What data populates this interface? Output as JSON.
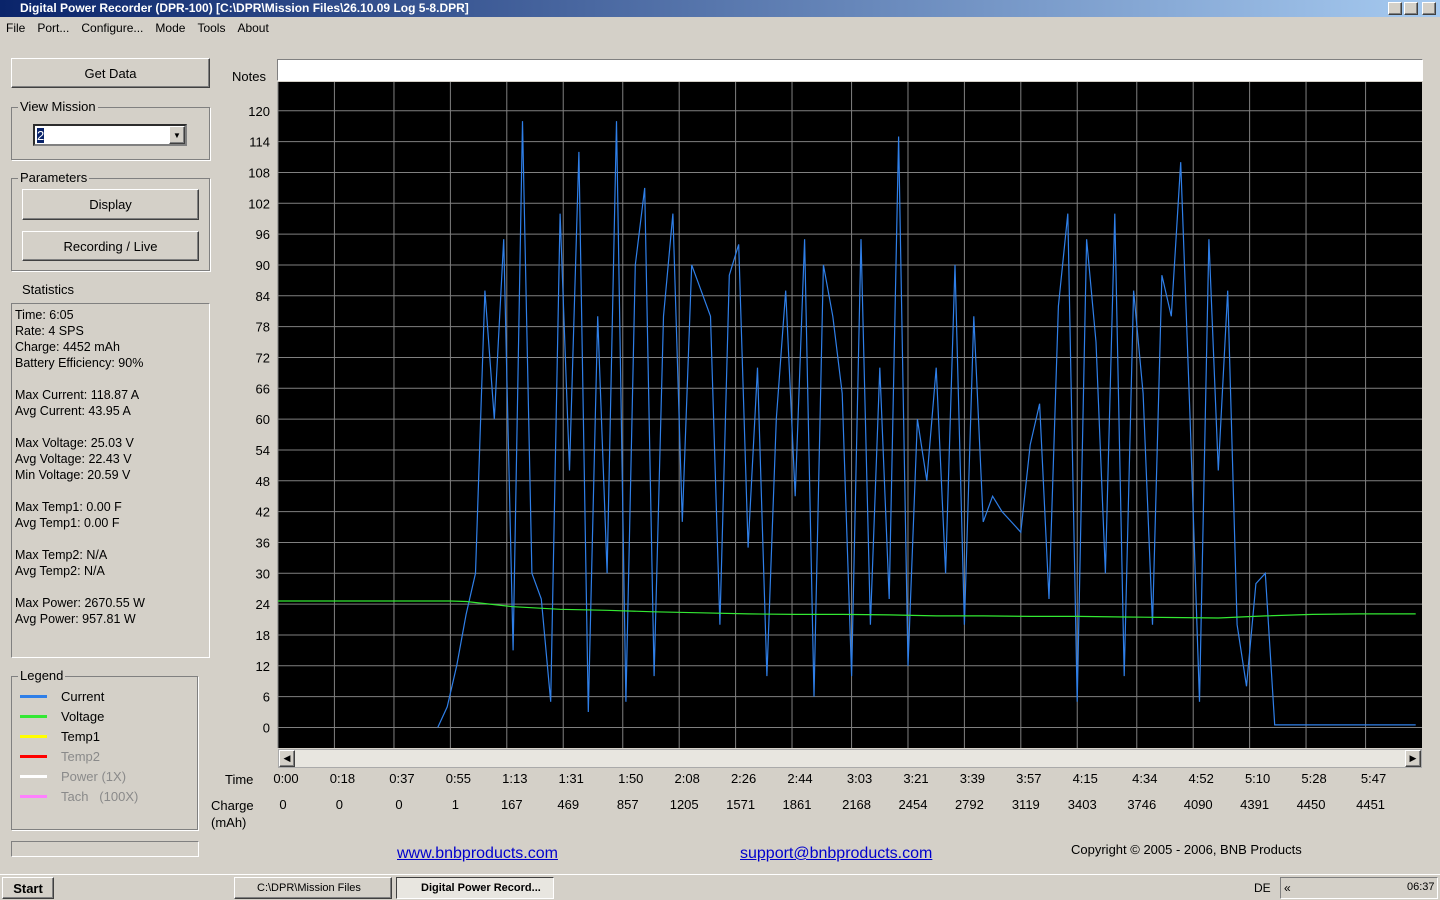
{
  "window": {
    "title": "Digital Power Recorder (DPR-100) [C:\\DPR\\Mission Files\\26.10.09 Log 5-8.DPR]"
  },
  "menu": [
    "File",
    "Port...",
    "Configure...",
    "Mode",
    "Tools",
    "About"
  ],
  "sidebar": {
    "get_data": "Get Data",
    "view_mission": {
      "label": "View Mission",
      "value": "2"
    },
    "parameters": {
      "label": "Parameters",
      "buttons": [
        "Display",
        "Recording / Live"
      ]
    },
    "statistics": {
      "label": "Statistics",
      "groups": [
        [
          "Time: 6:05",
          "Rate: 4 SPS",
          "Charge: 4452 mAh",
          "Battery Efficiency: 90%"
        ],
        [
          "Max Current: 118.87 A",
          "Avg Current: 43.95 A"
        ],
        [
          "Max Voltage: 25.03 V",
          "Avg Voltage: 22.43 V",
          "Min Voltage: 20.59 V"
        ],
        [
          "Max Temp1: 0.00 F",
          "Avg Temp1: 0.00 F"
        ],
        [
          "Max Temp2: N/A",
          "Avg Temp2: N/A"
        ],
        [
          "Max Power: 2670.55 W",
          "Avg Power: 957.81 W"
        ]
      ]
    },
    "legend": {
      "label": "Legend",
      "extra": [
        {
          "name": "Temp1",
          "color": "#ffff00",
          "disabled": false
        },
        {
          "name": "Temp2",
          "color": "#ff0000",
          "disabled": true
        },
        {
          "name": "Power (1X)",
          "color": "#ffffff",
          "disabled": true
        },
        {
          "name": "Tach   (100X)",
          "color": "#ff80ff",
          "disabled": true
        }
      ]
    }
  },
  "chart_data": {
    "type": "line",
    "notes_label": "Notes",
    "x_label": "Time",
    "charge_label": "Charge (mAh)",
    "background": "#000000",
    "grid": true,
    "grid_color": "#808080",
    "xlim": [
      0,
      365
    ],
    "xticks": [
      {
        "value": 0,
        "label": "0:00"
      },
      {
        "value": 18,
        "label": "0:18"
      },
      {
        "value": 37,
        "label": "0:37"
      },
      {
        "value": 55,
        "label": "0:55"
      },
      {
        "value": 73,
        "label": "1:13"
      },
      {
        "value": 91,
        "label": "1:31"
      },
      {
        "value": 110,
        "label": "1:50"
      },
      {
        "value": 128,
        "label": "2:08"
      },
      {
        "value": 146,
        "label": "2:26"
      },
      {
        "value": 164,
        "label": "2:44"
      },
      {
        "value": 183,
        "label": "3:03"
      },
      {
        "value": 201,
        "label": "3:21"
      },
      {
        "value": 219,
        "label": "3:39"
      },
      {
        "value": 237,
        "label": "3:57"
      },
      {
        "value": 255,
        "label": "4:15"
      },
      {
        "value": 274,
        "label": "4:34"
      },
      {
        "value": 292,
        "label": "4:52"
      },
      {
        "value": 310,
        "label": "5:10"
      },
      {
        "value": 328,
        "label": "5:28"
      },
      {
        "value": 347,
        "label": "5:47"
      }
    ],
    "charge": [
      0,
      0,
      0,
      1,
      167,
      469,
      857,
      1205,
      1571,
      1861,
      2168,
      2454,
      2792,
      3119,
      3403,
      3746,
      4090,
      4391,
      4450,
      4451
    ],
    "ylim": [
      -4,
      125.6
    ],
    "yticks": [
      0,
      6,
      12,
      18,
      24,
      30,
      36,
      42,
      48,
      54,
      60,
      66,
      72,
      78,
      84,
      90,
      96,
      102,
      108,
      114,
      120
    ],
    "series": [
      {
        "name": "Current",
        "color": "#2f7fe8",
        "x": [
          51,
          54,
          57,
          60,
          63,
          66,
          69,
          72,
          75,
          78,
          81,
          84,
          87,
          90,
          93,
          96,
          99,
          102,
          105,
          108,
          111,
          114,
          117,
          120,
          123,
          126,
          129,
          132,
          135,
          138,
          141,
          144,
          147,
          150,
          153,
          156,
          159,
          162,
          165,
          168,
          171,
          174,
          177,
          180,
          183,
          186,
          189,
          192,
          195,
          198,
          201,
          204,
          207,
          210,
          213,
          216,
          219,
          222,
          225,
          228,
          231,
          234,
          237,
          240,
          243,
          246,
          249,
          252,
          255,
          258,
          261,
          264,
          267,
          270,
          273,
          276,
          279,
          282,
          285,
          288,
          291,
          294,
          297,
          300,
          303,
          306,
          309,
          312,
          315,
          318,
          321,
          324,
          327,
          330,
          333,
          336,
          339,
          342,
          345,
          348,
          351,
          354,
          357,
          360,
          363
        ],
        "values": [
          0,
          4,
          12,
          22,
          30,
          85,
          60,
          95,
          15,
          118,
          30,
          25,
          5,
          100,
          50,
          112,
          3,
          80,
          30,
          118,
          5,
          90,
          105,
          10,
          80,
          100,
          40,
          90,
          85,
          80,
          20,
          88,
          94,
          35,
          70,
          10,
          60,
          85,
          45,
          95,
          6,
          90,
          80,
          65,
          10,
          95,
          20,
          70,
          25,
          115,
          12,
          60,
          48,
          70,
          30,
          90,
          20,
          80,
          40,
          45,
          42,
          40,
          38,
          55,
          63,
          25,
          82,
          100,
          5,
          95,
          75,
          30,
          100,
          10,
          85,
          65,
          20,
          88,
          80,
          110,
          60,
          5,
          95,
          50,
          85,
          20,
          8,
          28,
          30,
          0.5,
          0.5,
          0.5,
          0.5,
          0.5,
          0.5,
          0.5,
          0.5,
          0.5,
          0.5,
          0.5,
          0.5,
          0.5,
          0.5,
          0.5,
          0.5
        ]
      },
      {
        "name": "Voltage",
        "color": "#33e833",
        "x": [
          0,
          15,
          30,
          45,
          55,
          60,
          75,
          90,
          105,
          120,
          135,
          150,
          165,
          180,
          195,
          210,
          225,
          240,
          255,
          270,
          285,
          300,
          315,
          330,
          345,
          363
        ],
        "values": [
          24.6,
          24.6,
          24.6,
          24.6,
          24.6,
          24.5,
          23.5,
          23,
          22.8,
          22.5,
          22.3,
          22.1,
          22,
          22,
          21.9,
          21.7,
          21.7,
          21.6,
          21.6,
          21.5,
          21.4,
          21.3,
          21.7,
          22,
          22.1,
          22.1
        ]
      }
    ]
  },
  "footer": {
    "website": "www.bnbproducts.com",
    "support": "support@bnbproducts.com",
    "copyright": "Copyright © 2005 - 2006, BNB Products"
  },
  "taskbar": {
    "start": "Start",
    "tasks": [
      "C:\\DPR\\Mission Files",
      "Digital Power Record..."
    ],
    "language": "DE",
    "chevron": "«",
    "clock": "06:37"
  }
}
